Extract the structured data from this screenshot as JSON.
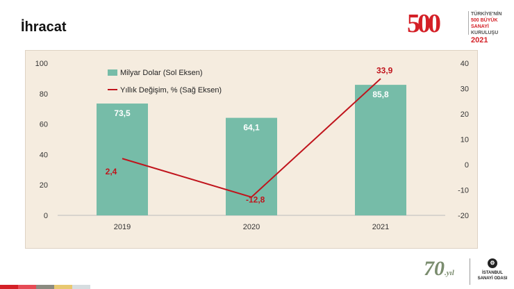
{
  "header": {
    "title": "İhracat"
  },
  "logo": {
    "number": "500",
    "line1": "TÜRKİYE'NİN",
    "line2": "500 BÜYÜK SANAYİ",
    "line3": "KURULUŞU",
    "year": "2021"
  },
  "footer": {
    "anniversary": "70",
    "anniversary_suffix": ".yıl",
    "org_line1": "İSTANBUL",
    "org_line2": "SANAYİ ODASI",
    "stripe_colors": [
      "#d42027",
      "#e64b55",
      "#8b8b80",
      "#e8c870",
      "#d6dde0"
    ]
  },
  "chart_data": {
    "type": "bar",
    "categories": [
      "2019",
      "2020",
      "2021"
    ],
    "series": [
      {
        "name": "Milyar Dolar (Sol Eksen)",
        "kind": "bar",
        "axis": "left",
        "values": [
          73.5,
          64.1,
          85.8
        ],
        "labels": [
          "73,5",
          "64,1",
          "85,8"
        ],
        "color": "#76bca8"
      },
      {
        "name": "Yıllık Değişim, % (Sağ Eksen)",
        "kind": "line",
        "axis": "right",
        "values": [
          2.4,
          -12.8,
          33.9
        ],
        "labels": [
          "2,4",
          "-12,8",
          "33,9"
        ],
        "color": "#c0141c"
      }
    ],
    "left_axis": {
      "min": 0,
      "max": 100,
      "ticks": [
        "0",
        "20",
        "40",
        "60",
        "80",
        "100"
      ],
      "tick_values": [
        0,
        20,
        40,
        60,
        80,
        100
      ]
    },
    "right_axis": {
      "min": -20,
      "max": 40,
      "ticks": [
        "-20",
        "-10",
        "0",
        "10",
        "20",
        "30",
        "40"
      ],
      "tick_values": [
        -20,
        -10,
        0,
        10,
        20,
        30,
        40
      ]
    },
    "legend_position": "top-left",
    "grid": false
  }
}
